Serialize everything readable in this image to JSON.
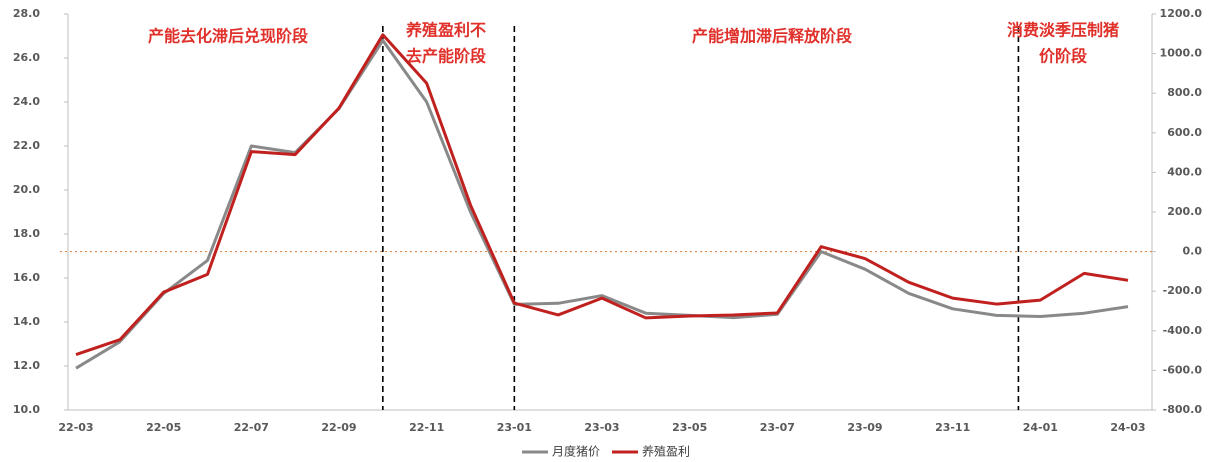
{
  "chart_data": {
    "type": "line",
    "categories": [
      "22-03",
      null,
      "22-05",
      null,
      "22-07",
      null,
      "22-09",
      null,
      "22-11",
      null,
      "23-01",
      null,
      "23-03",
      null,
      "23-05",
      null,
      "23-07",
      null,
      "23-09",
      null,
      "23-11",
      null,
      "24-01",
      null,
      "24-03"
    ],
    "series": [
      {
        "name": "月度猪价",
        "color": "#898989",
        "axis": "y",
        "values": [
          11.9,
          13.1,
          15.3,
          16.8,
          22.0,
          21.7,
          23.7,
          26.8,
          24.0,
          19.0,
          14.8,
          14.85,
          15.2,
          14.4,
          14.3,
          14.2,
          14.35,
          17.2,
          16.4,
          15.3,
          14.6,
          14.3,
          14.25,
          14.4,
          14.7
        ]
      },
      {
        "name": "养殖盈利",
        "color": "#c0211f",
        "axis": "y2",
        "values": [
          -520,
          -445,
          -205,
          -115,
          505,
          490,
          725,
          1095,
          850,
          235,
          -260,
          -320,
          -235,
          -335,
          -325,
          -320,
          -310,
          25,
          -35,
          -155,
          -235,
          -265,
          -245,
          -110,
          -145
        ]
      }
    ],
    "ylim": [
      10,
      28
    ],
    "yticks": [
      {
        "value": 10,
        "label": "10.0"
      },
      {
        "value": 12,
        "label": "12.0"
      },
      {
        "value": 14,
        "label": "14.0"
      },
      {
        "value": 16,
        "label": "16.0"
      },
      {
        "value": 18,
        "label": "18.0"
      },
      {
        "value": 20,
        "label": "20.0"
      },
      {
        "value": 22,
        "label": "22.0"
      },
      {
        "value": 24,
        "label": "24.0"
      },
      {
        "value": 26,
        "label": "26.0"
      },
      {
        "value": 28,
        "label": "28.0"
      }
    ],
    "y2lim": [
      -800,
      1200
    ],
    "y2ticks": [
      {
        "value": -800,
        "label": "-800.0"
      },
      {
        "value": -600,
        "label": "-600.0"
      },
      {
        "value": -400,
        "label": "-400.0"
      },
      {
        "value": -200,
        "label": "-200.0"
      },
      {
        "value": 0,
        "label": "0.0"
      },
      {
        "value": 200,
        "label": "200.0"
      },
      {
        "value": 400,
        "label": "400.0"
      },
      {
        "value": 600,
        "label": "600.0"
      },
      {
        "value": 800,
        "label": "800.0"
      },
      {
        "value": 1000,
        "label": "1000.0"
      },
      {
        "value": 1200,
        "label": "1200.0"
      }
    ],
    "annotations": [
      {
        "lines": [
          "产能去化滞后兑现阶段"
        ]
      },
      {
        "lines": [
          "养殖盈利不",
          "去产能阶段"
        ]
      },
      {
        "lines": [
          "产能增加滞后释放阶段"
        ]
      },
      {
        "lines": [
          "消费淡季压制猪",
          "价阶段"
        ]
      }
    ],
    "legend": "bottom"
  }
}
